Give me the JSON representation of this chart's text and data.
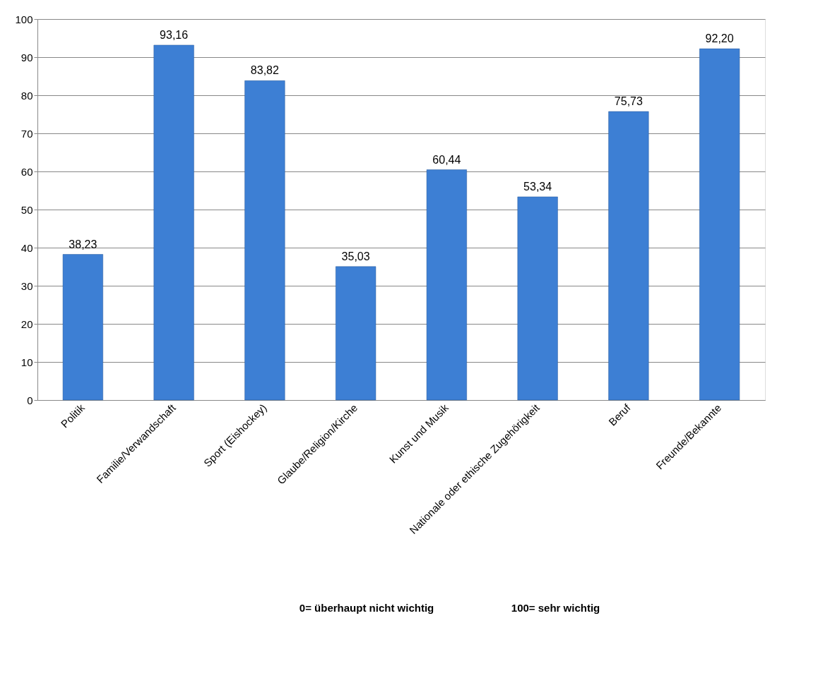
{
  "chart_data": {
    "type": "bar",
    "categories": [
      "Politik",
      "Familie/Verwandschaft",
      "Sport (Eishockey)",
      "Glaube/Religion/Kirche",
      "Kunst und Musik",
      "Nationale oder ethische Zugehörigkeit",
      "Beruf",
      "Freunde/Bekannte"
    ],
    "values": [
      38.23,
      93.16,
      83.82,
      35.03,
      60.44,
      53.34,
      75.73,
      92.2
    ],
    "value_labels": [
      "38,23",
      "93,16",
      "83,82",
      "35,03",
      "60,44",
      "53,34",
      "75,73",
      "92,20"
    ],
    "color": "#3d7fd4",
    "ylim": [
      0,
      100
    ],
    "yticks": [
      0,
      10,
      20,
      30,
      40,
      50,
      60,
      70,
      80,
      90,
      100
    ],
    "grid": "y",
    "annotations": [
      "0= überhaupt nicht wichtig",
      "100= sehr wichtig"
    ]
  }
}
